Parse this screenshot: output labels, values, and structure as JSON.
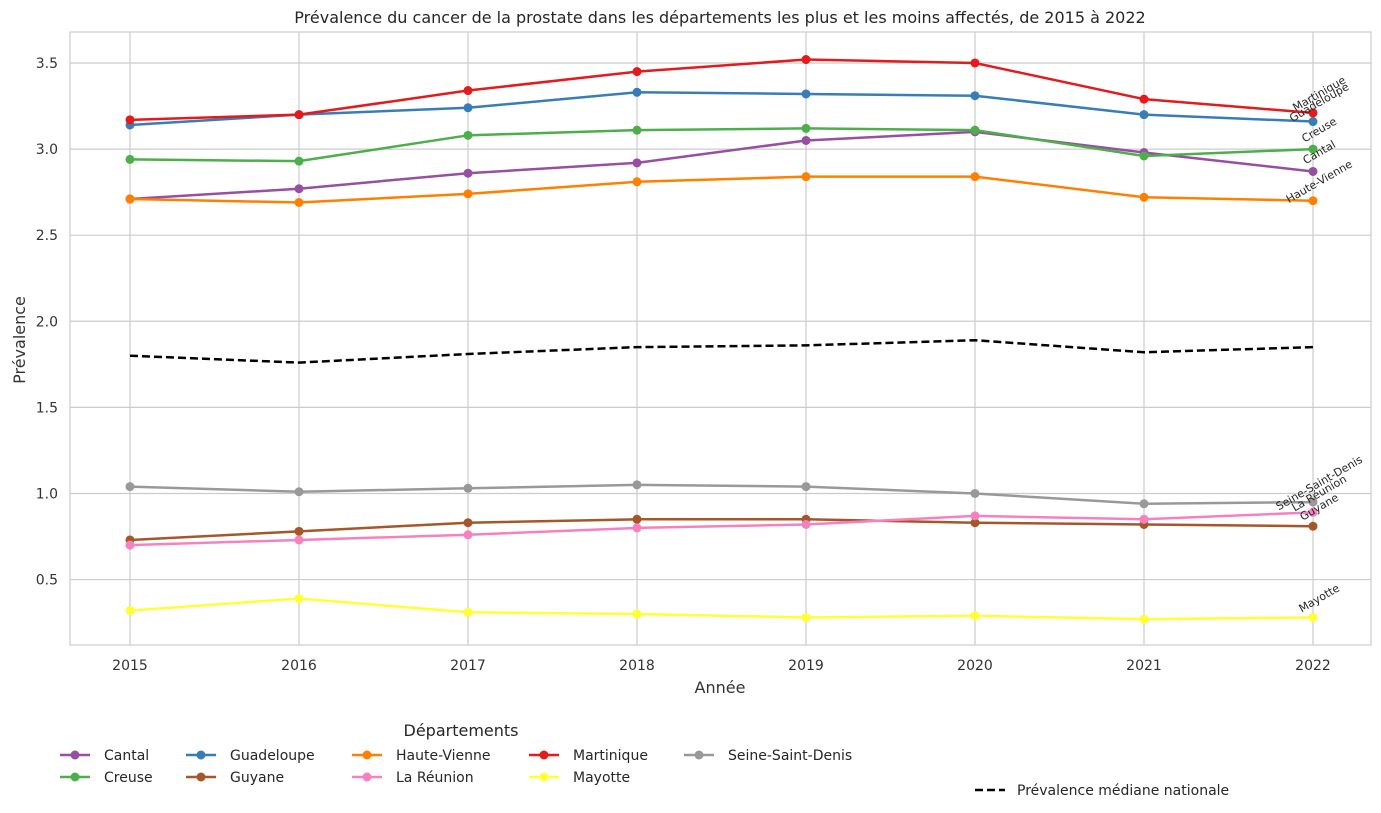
{
  "chart_data": {
    "type": "line",
    "title": "Prévalence du cancer de la prostate dans les départements les plus et les moins affectés, de 2015 à 2022",
    "xlabel": "Année",
    "ylabel": "Prévalence",
    "x": [
      "2015",
      "2016",
      "2017",
      "2018",
      "2019",
      "2020",
      "2021",
      "2022"
    ],
    "ylim": [
      0.12,
      3.68
    ],
    "yticks": [
      "0.5",
      "1.0",
      "1.5",
      "2.0",
      "2.5",
      "3.0",
      "3.5"
    ],
    "grid": true,
    "series": [
      {
        "name": "Cantal",
        "color": "#984ea3",
        "values": [
          2.71,
          2.77,
          2.86,
          2.92,
          3.05,
          3.1,
          2.98,
          2.87
        ]
      },
      {
        "name": "Creuse",
        "color": "#4daf4a",
        "values": [
          2.94,
          2.93,
          3.08,
          3.11,
          3.12,
          3.11,
          2.96,
          3.0
        ]
      },
      {
        "name": "Guadeloupe",
        "color": "#377eb8",
        "values": [
          3.14,
          3.2,
          3.24,
          3.33,
          3.32,
          3.31,
          3.2,
          3.16
        ]
      },
      {
        "name": "Guyane",
        "color": "#a65628",
        "values": [
          0.73,
          0.78,
          0.83,
          0.85,
          0.85,
          0.83,
          0.82,
          0.81
        ]
      },
      {
        "name": "Haute-Vienne",
        "color": "#ff7f00",
        "values": [
          2.71,
          2.69,
          2.74,
          2.81,
          2.84,
          2.84,
          2.72,
          2.7
        ]
      },
      {
        "name": "La Réunion",
        "color": "#f781bf",
        "values": [
          0.7,
          0.73,
          0.76,
          0.8,
          0.82,
          0.87,
          0.85,
          0.89
        ]
      },
      {
        "name": "Martinique",
        "color": "#e41a1c",
        "values": [
          3.17,
          3.2,
          3.34,
          3.45,
          3.52,
          3.5,
          3.29,
          3.21
        ]
      },
      {
        "name": "Mayotte",
        "color": "#ffff33",
        "values": [
          0.32,
          0.39,
          0.31,
          0.3,
          0.28,
          0.29,
          0.27,
          0.28
        ]
      },
      {
        "name": "Seine-Saint-Denis",
        "color": "#999999",
        "values": [
          1.04,
          1.01,
          1.03,
          1.05,
          1.04,
          1.0,
          0.94,
          0.95
        ]
      }
    ],
    "median": {
      "name": "Prévalence médiane nationale",
      "color": "#000000",
      "values": [
        1.8,
        1.76,
        1.81,
        1.85,
        1.86,
        1.89,
        1.82,
        1.85
      ]
    },
    "legend": {
      "title": "Départements",
      "placement": "bottom-left"
    },
    "median_legend_placement": "bottom-right"
  }
}
